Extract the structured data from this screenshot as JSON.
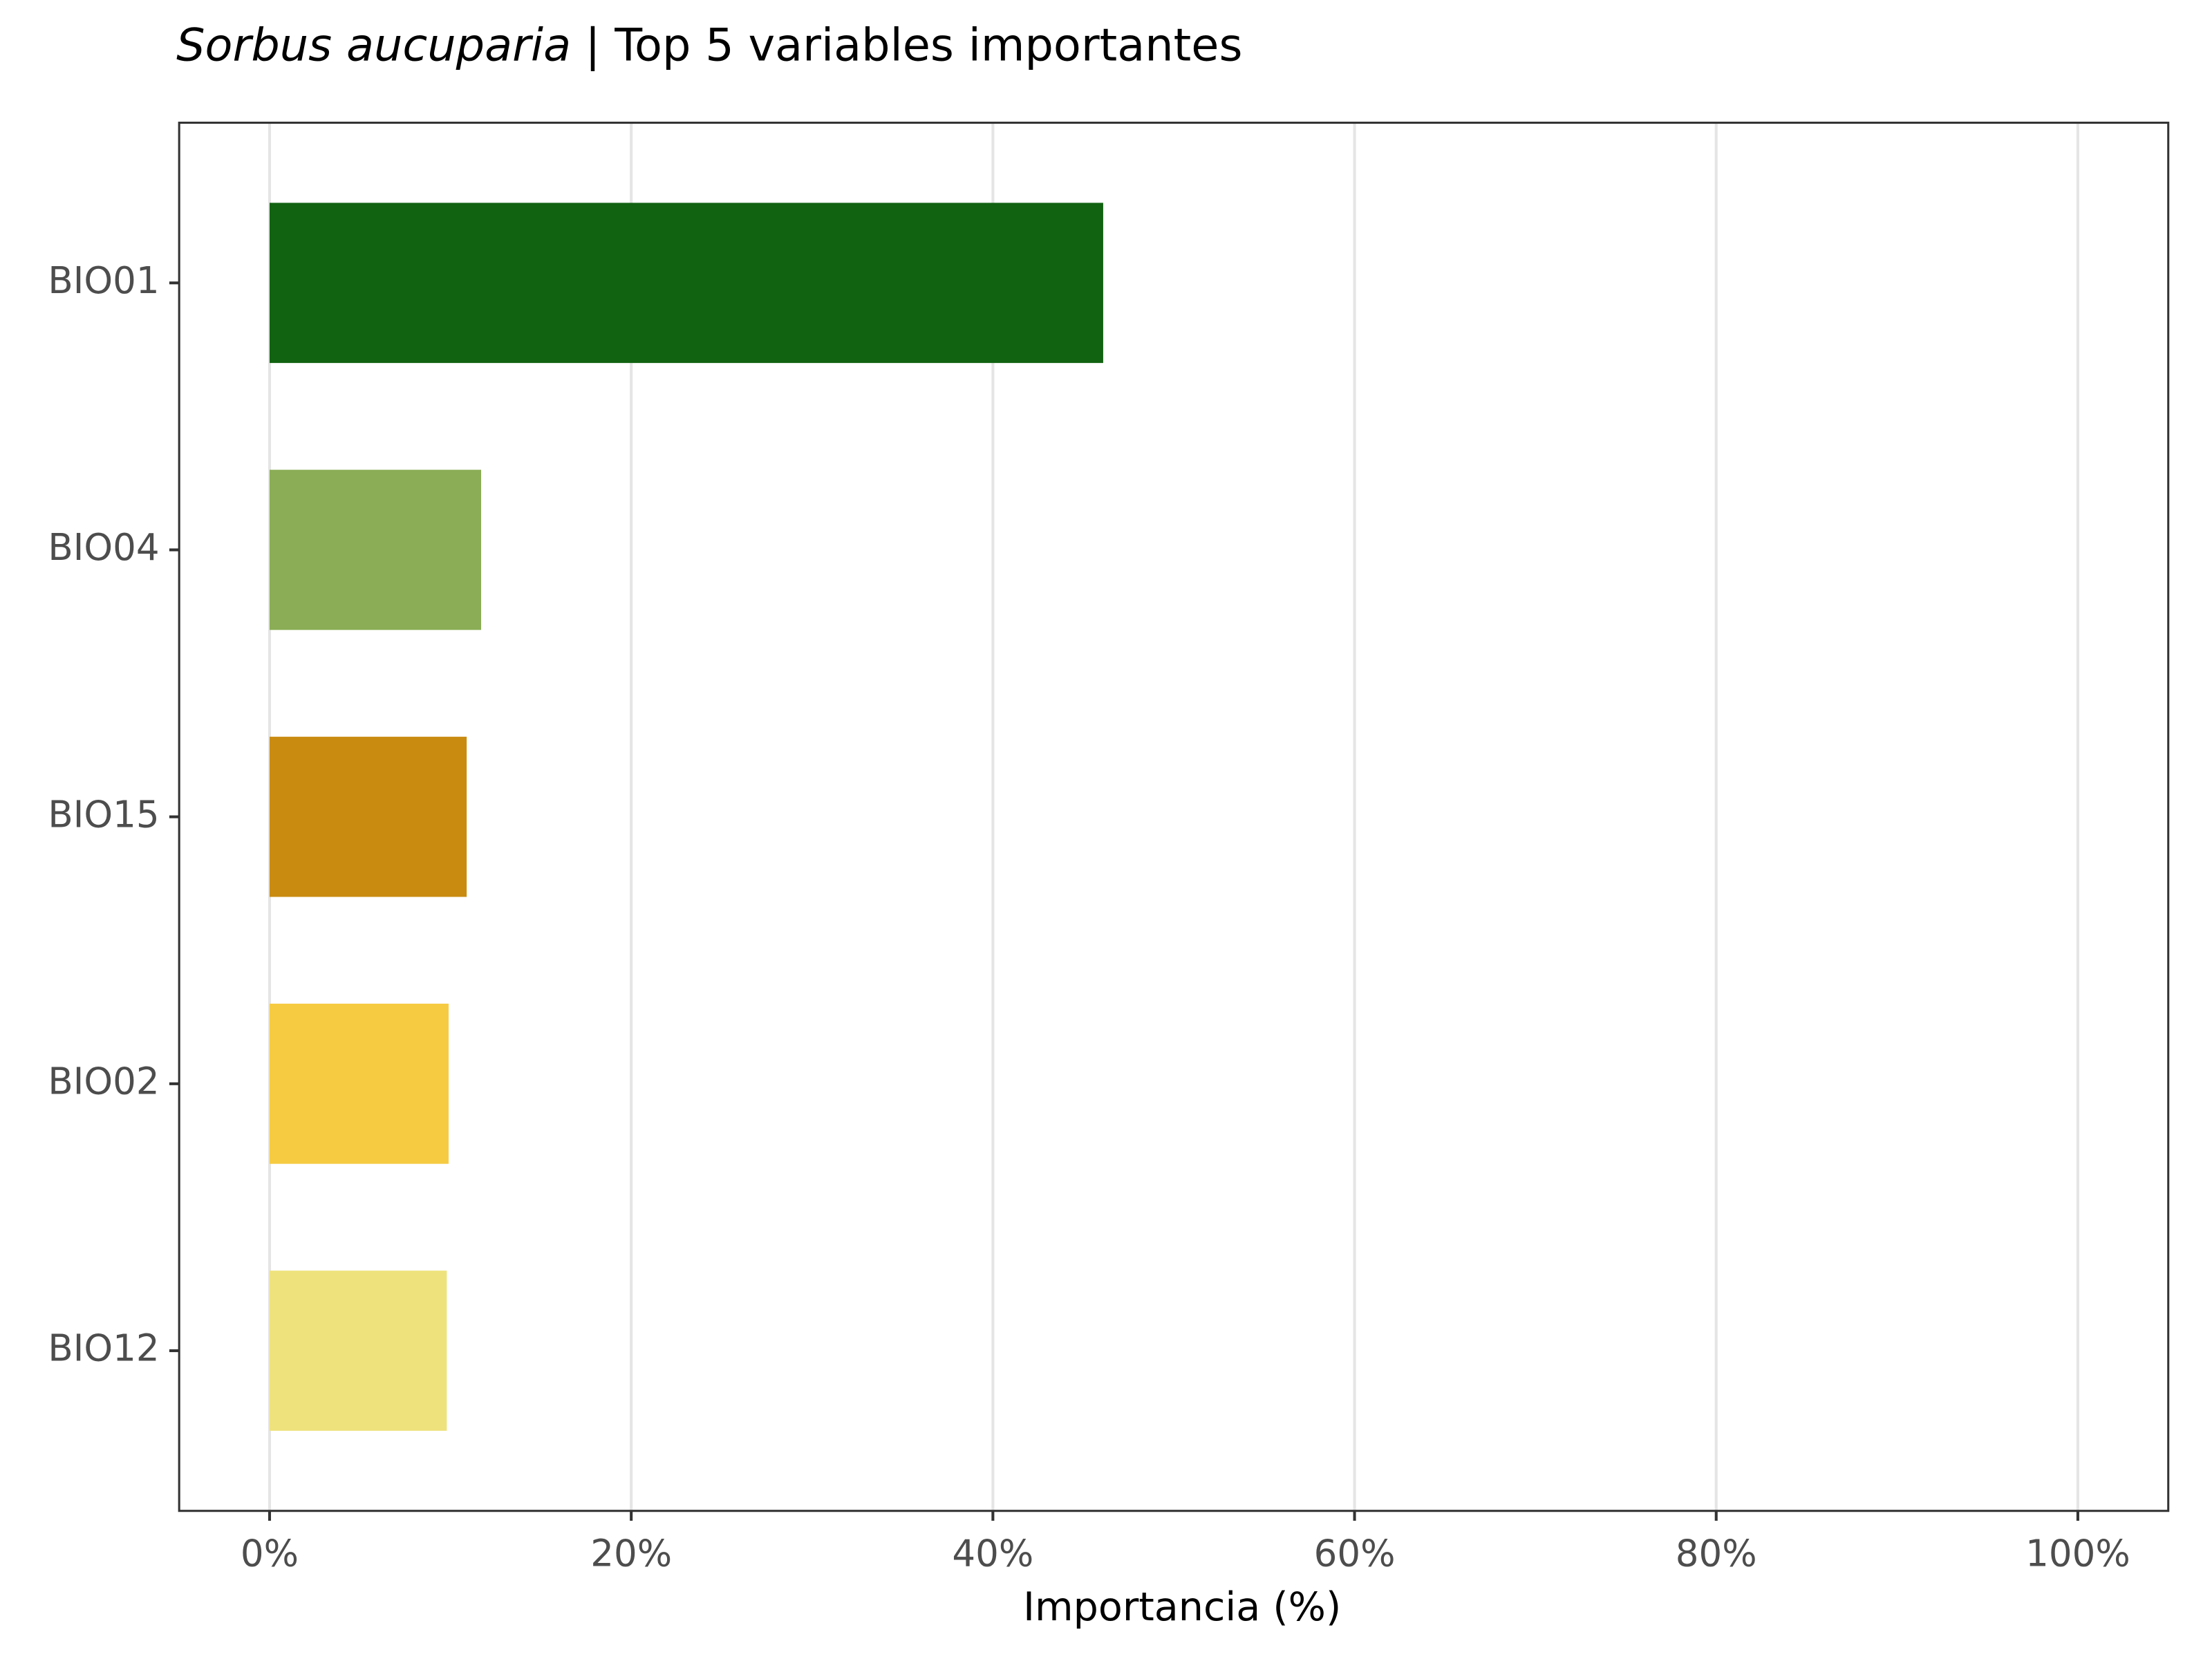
{
  "chart_data": {
    "type": "bar",
    "orientation": "horizontal",
    "title_italic": "Sorbus aucuparia",
    "title": "| Top 5 variables importantes",
    "x_label": "Importancia (%)",
    "categories": [
      "BIO01",
      "BIO04",
      "BIO15",
      "BIO02",
      "BIO12"
    ],
    "values": [
      46.1,
      11.7,
      10.9,
      9.9,
      9.8
    ],
    "colors": [
      "#116211",
      "#8aad55",
      "#c98b10",
      "#f6cb42",
      "#eee27d"
    ],
    "xlim": [
      -5,
      105
    ],
    "xticks": [
      {
        "value": 0,
        "label": "0%"
      },
      {
        "value": 20,
        "label": "20%"
      },
      {
        "value": 40,
        "label": "40%"
      },
      {
        "value": 60,
        "label": "60%"
      },
      {
        "value": 80,
        "label": "80%"
      },
      {
        "value": 100,
        "label": "100%"
      }
    ],
    "grid": true
  }
}
